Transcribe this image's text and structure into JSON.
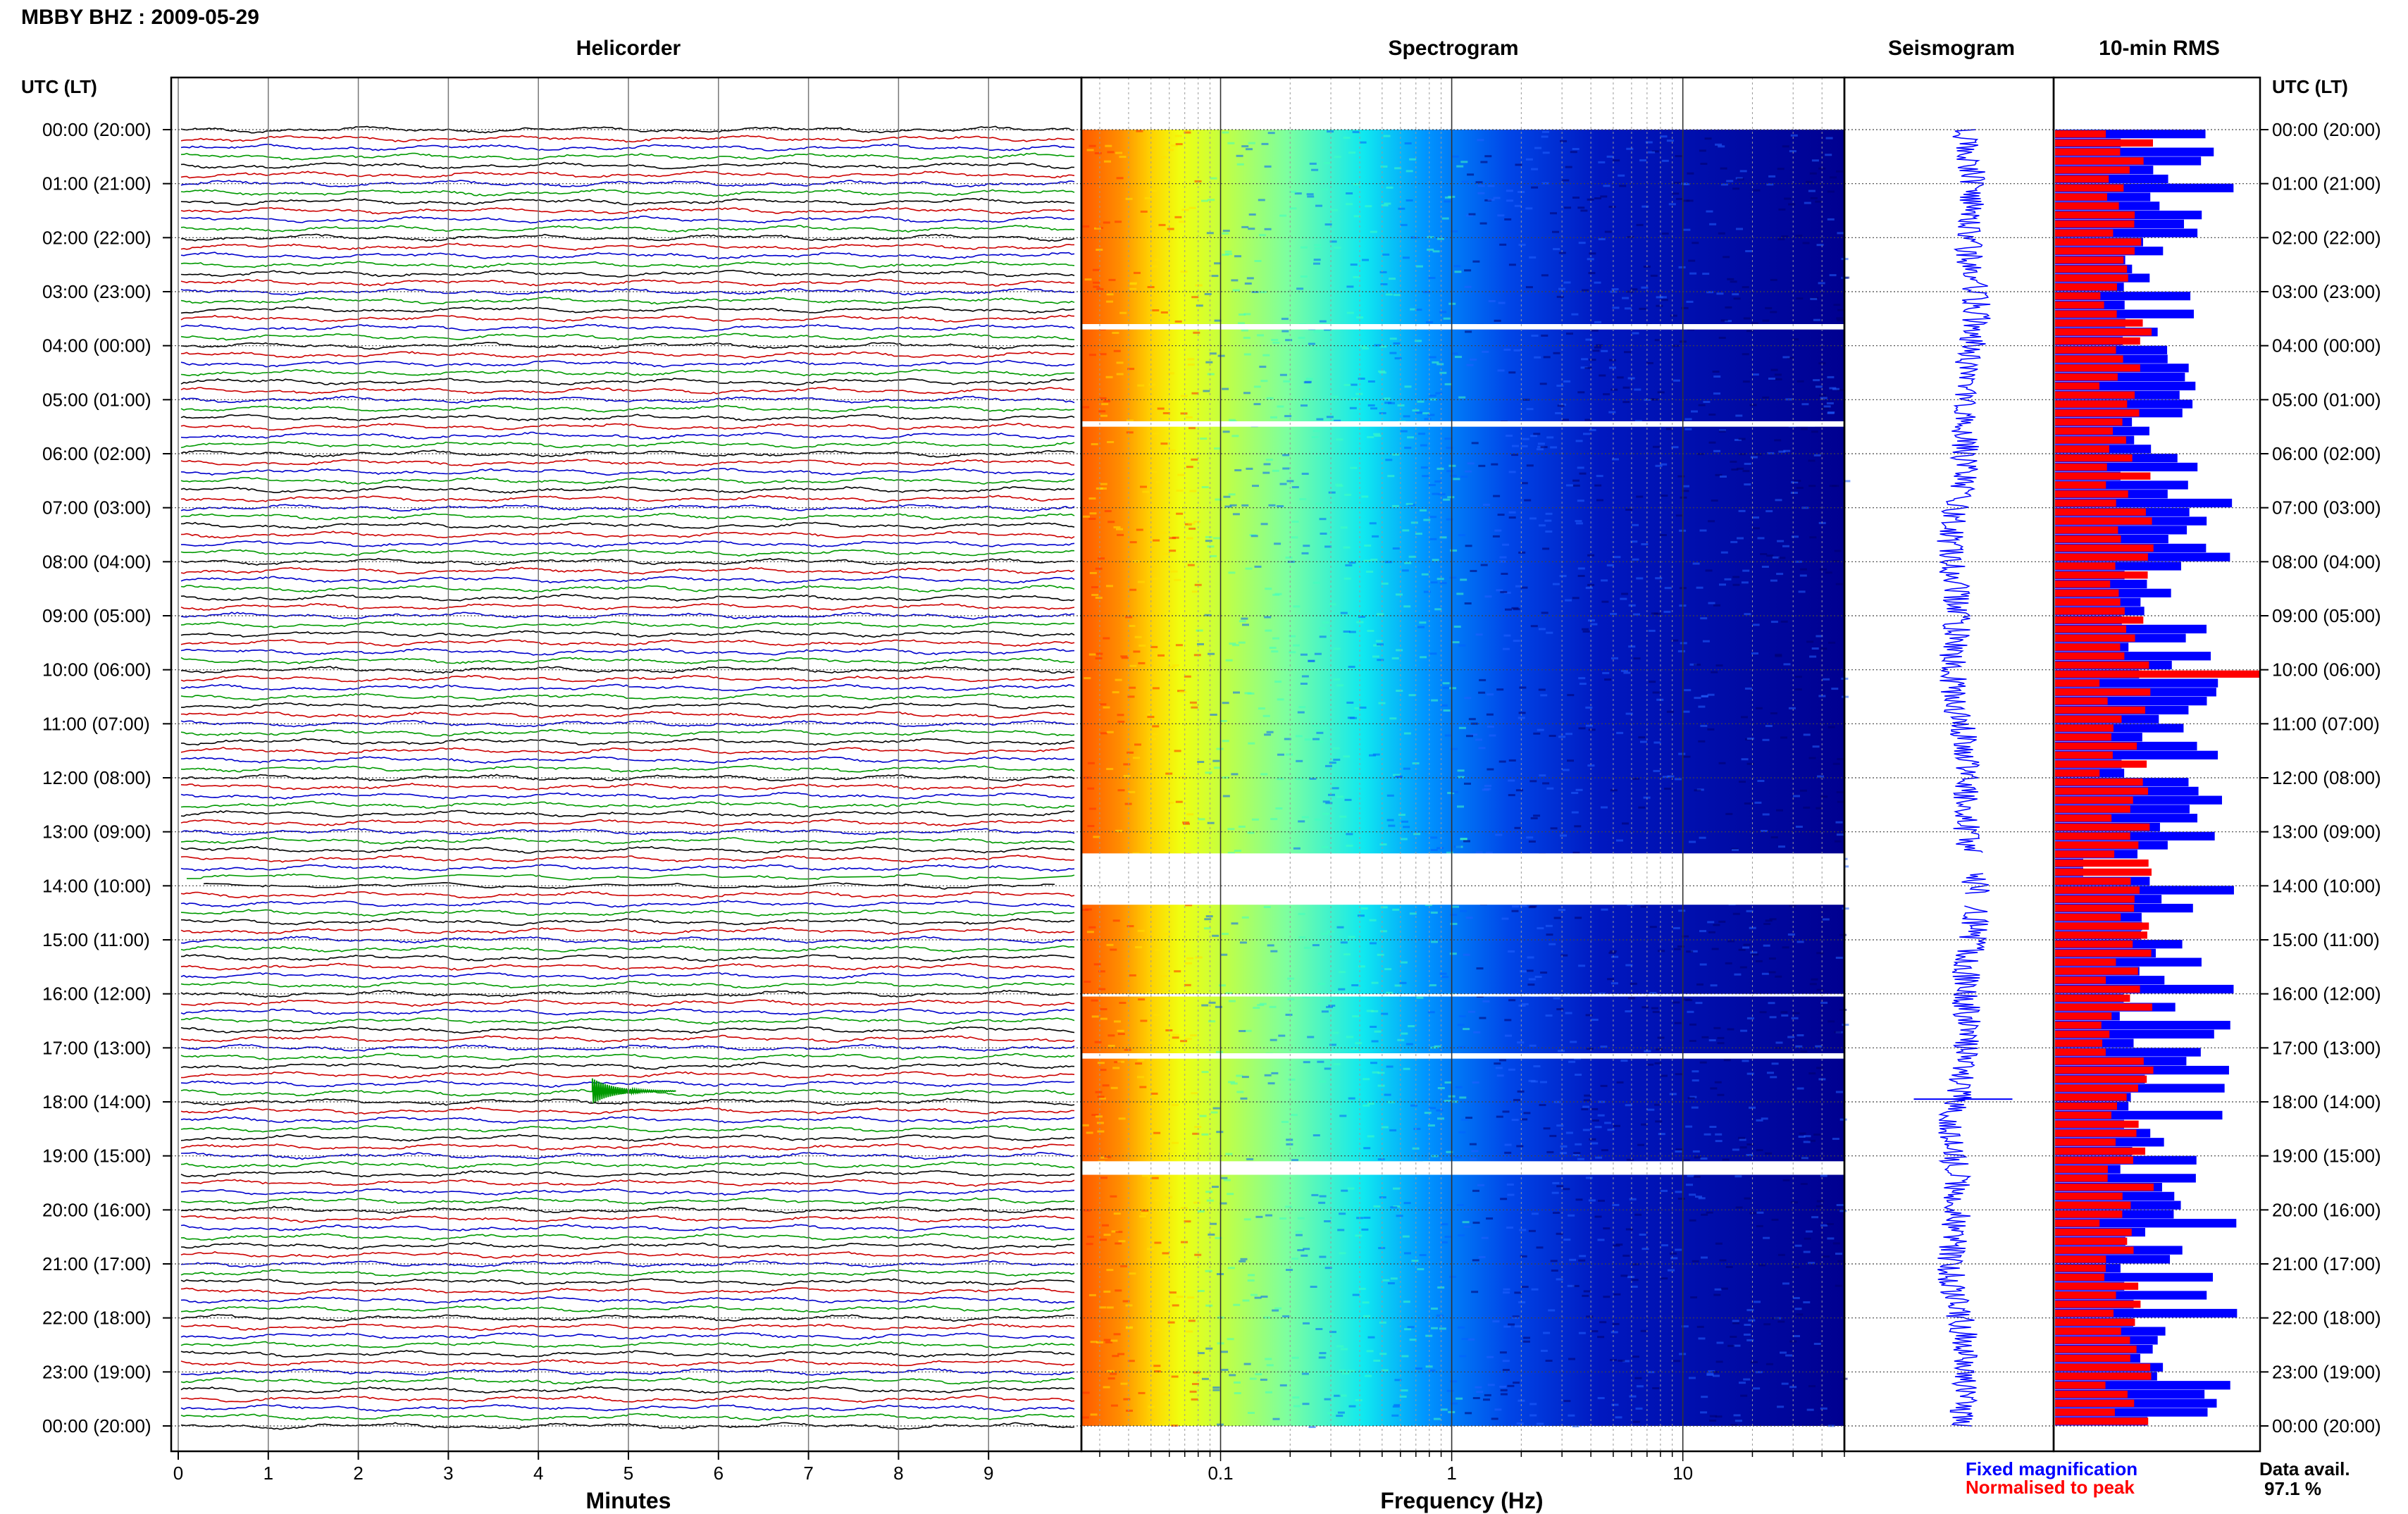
{
  "header": {
    "station": "MBBY BHZ : 2009-05-29",
    "titles": {
      "helicorder": "Helicorder",
      "spectrogram": "Spectrogram",
      "seismogram": "Seismogram",
      "rms": "10-min RMS"
    },
    "utc_header": "UTC (LT)"
  },
  "time_labels": [
    "00:00 (20:00)",
    "01:00 (21:00)",
    "02:00 (22:00)",
    "03:00 (23:00)",
    "04:00 (00:00)",
    "05:00 (01:00)",
    "06:00 (02:00)",
    "07:00 (03:00)",
    "08:00 (04:00)",
    "09:00 (05:00)",
    "10:00 (06:00)",
    "11:00 (07:00)",
    "12:00 (08:00)",
    "13:00 (09:00)",
    "14:00 (10:00)",
    "15:00 (11:00)",
    "16:00 (12:00)",
    "17:00 (13:00)",
    "18:00 (14:00)",
    "19:00 (15:00)",
    "20:00 (16:00)",
    "21:00 (17:00)",
    "22:00 (18:00)",
    "23:00 (19:00)",
    "00:00 (20:00)"
  ],
  "chart_data": [
    {
      "type": "line",
      "title": "Helicorder",
      "xlabel": "Minutes",
      "x_ticks": [
        "0",
        "1",
        "2",
        "3",
        "4",
        "5",
        "6",
        "7",
        "8",
        "9"
      ],
      "xlim": [
        0,
        10
      ],
      "rows_per_hour": 6,
      "trace_colors": [
        "#000000",
        "#cc0000",
        "#0000cc",
        "#009900"
      ],
      "data_gap_hours": [
        13.75,
        14.0
      ],
      "events": [
        {
          "hour": 17.8,
          "minute": 4.6,
          "color": "#009900"
        }
      ]
    },
    {
      "type": "heatmap",
      "title": "Spectrogram",
      "xlabel": "Frequency (Hz)",
      "x_scale": "log",
      "xlim": [
        0.025,
        50
      ],
      "x_ticks": [
        "0.1",
        "1",
        "10"
      ],
      "gaps_hours": [
        [
          3.6,
          3.7
        ],
        [
          5.4,
          5.5
        ],
        [
          13.4,
          14.35
        ],
        [
          16.0,
          16.05
        ],
        [
          17.1,
          17.2
        ],
        [
          19.1,
          19.35
        ]
      ],
      "colormap": "jet"
    },
    {
      "type": "line",
      "title": "Seismogram",
      "gaps_hours": [
        [
          13.4,
          13.75
        ],
        [
          14.15,
          14.35
        ]
      ]
    },
    {
      "type": "bar",
      "title": "10-min RMS",
      "series": [
        {
          "name": "Fixed magnification",
          "color": "#0000ff"
        },
        {
          "name": "Normalised to peak",
          "color": "#ff0000"
        }
      ],
      "bars_per_hour": 6,
      "normalised_peak_hour": 10.0
    }
  ],
  "legend": {
    "fixed": "Fixed magnification",
    "normalised": "Normalised to peak"
  },
  "availability": {
    "label": "Data avail.",
    "value": "97.1 %"
  }
}
